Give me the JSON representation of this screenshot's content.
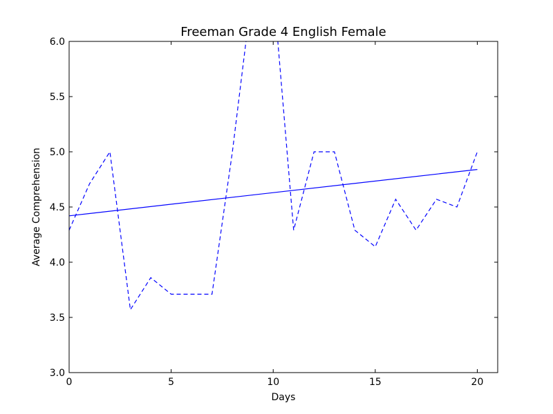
{
  "chart_data": {
    "type": "line",
    "title": "Freeman Grade 4 English Female",
    "xlabel": "Days",
    "ylabel": "Average Comprehension",
    "xlim": [
      0,
      21
    ],
    "ylim": [
      3.0,
      6.0
    ],
    "xticks": [
      0,
      5,
      10,
      15,
      20
    ],
    "yticks": [
      3.0,
      3.5,
      4.0,
      4.5,
      5.0,
      5.5,
      6.0
    ],
    "xtick_labels": [
      "0",
      "5",
      "10",
      "15",
      "20"
    ],
    "ytick_labels": [
      "3.0",
      "3.5",
      "4.0",
      "4.5",
      "5.0",
      "5.5",
      "6.0"
    ],
    "grid": false,
    "series": [
      {
        "style": "dashed",
        "color": "#0000ff",
        "x": [
          0,
          1,
          2,
          3,
          4,
          5,
          6,
          7,
          8,
          9,
          10,
          11,
          12,
          13,
          14,
          15,
          16,
          17,
          18,
          19,
          20
        ],
        "y": [
          4.29,
          4.71,
          5.0,
          3.57,
          3.86,
          3.71,
          3.71,
          3.71,
          5.0,
          6.5,
          6.5,
          4.29,
          5.0,
          5.0,
          4.29,
          4.14,
          4.57,
          4.29,
          4.57,
          4.5,
          5.0
        ]
      },
      {
        "style": "solid",
        "color": "#0000ff",
        "x": [
          0,
          20
        ],
        "y": [
          4.42,
          4.84
        ]
      }
    ]
  }
}
